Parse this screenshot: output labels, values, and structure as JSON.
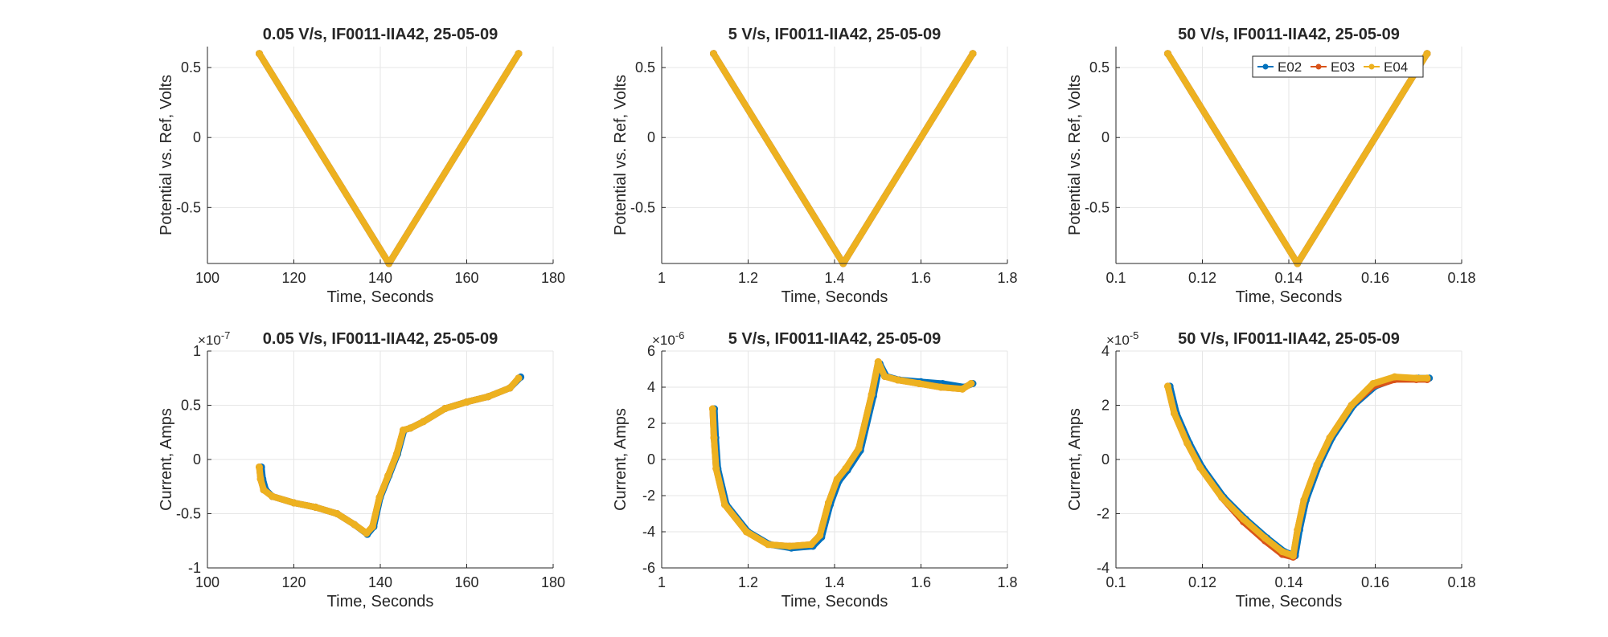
{
  "colors": {
    "E02": "#0072BD",
    "E03": "#D95319",
    "E04": "#EDB120",
    "grid": "#e6e6e6",
    "axis": "#262626"
  },
  "legend": {
    "placement": "top-right of top-right subplot",
    "entries": [
      "E02",
      "E03",
      "E04"
    ]
  },
  "chart_data": [
    {
      "type": "line",
      "title": "0.05 V/s, IF0011-IIA42, 25-05-09",
      "xlabel": "Time, Seconds",
      "ylabel": "Potential vs. Ref, Volts",
      "xlim": [
        100,
        180
      ],
      "ylim": [
        -0.9,
        0.65
      ],
      "xticks": [
        100,
        120,
        140,
        160,
        180
      ],
      "xtick_labels": [
        "100",
        "120",
        "140",
        "160",
        "180"
      ],
      "yticks": [
        -0.5,
        0,
        0.5
      ],
      "ytick_labels": [
        "-0.5",
        "0",
        "0.5"
      ],
      "exponent": "",
      "grid": true,
      "series": [
        {
          "name": "E02",
          "x": [
            112,
            142,
            172
          ],
          "y": [
            0.6,
            -0.9,
            0.6
          ]
        },
        {
          "name": "E03",
          "x": [
            112,
            142,
            172
          ],
          "y": [
            0.6,
            -0.9,
            0.6
          ]
        },
        {
          "name": "E04",
          "x": [
            112,
            142,
            172
          ],
          "y": [
            0.6,
            -0.9,
            0.6
          ]
        }
      ]
    },
    {
      "type": "line",
      "title": "5 V/s, IF0011-IIA42, 25-05-09",
      "xlabel": "Time, Seconds",
      "ylabel": "Potential vs. Ref, Volts",
      "xlim": [
        1,
        1.8
      ],
      "ylim": [
        -0.9,
        0.65
      ],
      "xticks": [
        1,
        1.2,
        1.4,
        1.6,
        1.8
      ],
      "xtick_labels": [
        "1",
        "1.2",
        "1.4",
        "1.6",
        "1.8"
      ],
      "yticks": [
        -0.5,
        0,
        0.5
      ],
      "ytick_labels": [
        "-0.5",
        "0",
        "0.5"
      ],
      "exponent": "",
      "grid": true,
      "series": [
        {
          "name": "E02",
          "x": [
            1.12,
            1.42,
            1.72
          ],
          "y": [
            0.6,
            -0.9,
            0.6
          ]
        },
        {
          "name": "E03",
          "x": [
            1.12,
            1.42,
            1.72
          ],
          "y": [
            0.6,
            -0.9,
            0.6
          ]
        },
        {
          "name": "E04",
          "x": [
            1.12,
            1.42,
            1.72
          ],
          "y": [
            0.6,
            -0.9,
            0.6
          ]
        }
      ]
    },
    {
      "type": "line",
      "title": "50 V/s, IF0011-IIA42, 25-05-09",
      "xlabel": "Time, Seconds",
      "ylabel": "Potential vs. Ref, Volts",
      "xlim": [
        0.1,
        0.18
      ],
      "ylim": [
        -0.9,
        0.65
      ],
      "xticks": [
        0.1,
        0.12,
        0.14,
        0.16,
        0.18
      ],
      "xtick_labels": [
        "0.1",
        "0.12",
        "0.14",
        "0.16",
        "0.18"
      ],
      "yticks": [
        -0.5,
        0,
        0.5
      ],
      "ytick_labels": [
        "-0.5",
        "0",
        "0.5"
      ],
      "exponent": "",
      "grid": true,
      "has_legend": true,
      "series": [
        {
          "name": "E02",
          "x": [
            0.112,
            0.142,
            0.172
          ],
          "y": [
            0.6,
            -0.9,
            0.6
          ]
        },
        {
          "name": "E03",
          "x": [
            0.112,
            0.142,
            0.172
          ],
          "y": [
            0.6,
            -0.9,
            0.6
          ]
        },
        {
          "name": "E04",
          "x": [
            0.112,
            0.142,
            0.172
          ],
          "y": [
            0.6,
            -0.9,
            0.6
          ]
        }
      ]
    },
    {
      "type": "line",
      "title": "0.05 V/s, IF0011-IIA42, 25-05-09",
      "xlabel": "Time, Seconds",
      "ylabel": "Current, Amps",
      "xlim": [
        100,
        180
      ],
      "ylim": [
        -1,
        1
      ],
      "xticks": [
        100,
        120,
        140,
        160,
        180
      ],
      "xtick_labels": [
        "100",
        "120",
        "140",
        "160",
        "180"
      ],
      "yticks": [
        -1,
        -0.5,
        0,
        0.5,
        1
      ],
      "ytick_labels": [
        "-1",
        "-0.5",
        "0",
        "0.5",
        "1"
      ],
      "exponent": "×10",
      "exponent_power": "-7",
      "grid": true,
      "series": [
        {
          "name": "E02",
          "x": [
            112.5,
            112.8,
            113.5,
            115,
            120,
            125,
            130,
            134,
            137,
            138.5,
            140,
            142,
            144,
            145.5,
            147,
            150,
            155,
            160,
            165,
            170,
            172.5
          ],
          "y": [
            -0.07,
            -0.18,
            -0.28,
            -0.34,
            -0.4,
            -0.44,
            -0.5,
            -0.6,
            -0.69,
            -0.62,
            -0.35,
            -0.15,
            0.05,
            0.27,
            0.29,
            0.35,
            0.47,
            0.53,
            0.58,
            0.66,
            0.76
          ]
        },
        {
          "name": "E03",
          "x": [
            112,
            112.3,
            113,
            115,
            120,
            125,
            130,
            134,
            136.8,
            138.2,
            139.8,
            141.8,
            143.8,
            145.3,
            147,
            150,
            155,
            160,
            165,
            170,
            172
          ],
          "y": [
            -0.07,
            -0.18,
            -0.28,
            -0.34,
            -0.4,
            -0.44,
            -0.5,
            -0.6,
            -0.68,
            -0.62,
            -0.35,
            -0.15,
            0.05,
            0.27,
            0.29,
            0.35,
            0.47,
            0.53,
            0.58,
            0.66,
            0.75
          ]
        },
        {
          "name": "E04",
          "x": [
            112,
            112.3,
            113,
            115,
            120,
            125,
            130,
            134,
            136.8,
            138.2,
            139.8,
            141.8,
            143.8,
            145.3,
            147,
            150,
            155,
            160,
            165,
            170,
            172
          ],
          "y": [
            -0.07,
            -0.18,
            -0.28,
            -0.34,
            -0.4,
            -0.44,
            -0.5,
            -0.6,
            -0.68,
            -0.62,
            -0.35,
            -0.15,
            0.05,
            0.27,
            0.29,
            0.35,
            0.47,
            0.53,
            0.58,
            0.66,
            0.75
          ]
        }
      ]
    },
    {
      "type": "line",
      "title": "5 V/s, IF0011-IIA42, 25-05-09",
      "xlabel": "Time, Seconds",
      "ylabel": "Current, Amps",
      "xlim": [
        1,
        1.8
      ],
      "ylim": [
        -6,
        6
      ],
      "xticks": [
        1,
        1.2,
        1.4,
        1.6,
        1.8
      ],
      "xtick_labels": [
        "1",
        "1.2",
        "1.4",
        "1.6",
        "1.8"
      ],
      "yticks": [
        -6,
        -4,
        -2,
        0,
        2,
        4,
        6
      ],
      "ytick_labels": [
        "-6",
        "-4",
        "-2",
        "0",
        "2",
        "4",
        "6"
      ],
      "exponent": "×10",
      "exponent_power": "-6",
      "grid": true,
      "series": [
        {
          "name": "E02",
          "x": [
            1.122,
            1.125,
            1.13,
            1.15,
            1.2,
            1.25,
            1.3,
            1.35,
            1.37,
            1.39,
            1.41,
            1.43,
            1.46,
            1.49,
            1.505,
            1.52,
            1.55,
            1.6,
            1.65,
            1.7,
            1.72
          ],
          "y": [
            2.8,
            1.2,
            -0.5,
            -2.5,
            -4.0,
            -4.7,
            -4.9,
            -4.8,
            -4.3,
            -2.5,
            -1.2,
            -0.6,
            0.5,
            3.5,
            5.3,
            4.6,
            4.4,
            4.3,
            4.2,
            4.0,
            4.2
          ]
        },
        {
          "name": "E03",
          "x": [
            1.118,
            1.121,
            1.126,
            1.146,
            1.196,
            1.246,
            1.296,
            1.346,
            1.366,
            1.386,
            1.406,
            1.426,
            1.456,
            1.486,
            1.501,
            1.516,
            1.546,
            1.596,
            1.646,
            1.696,
            1.716
          ],
          "y": [
            2.8,
            1.2,
            -0.5,
            -2.5,
            -4.0,
            -4.7,
            -4.8,
            -4.7,
            -4.2,
            -2.4,
            -1.1,
            -0.5,
            0.6,
            3.6,
            5.4,
            4.6,
            4.4,
            4.2,
            4.0,
            3.9,
            4.2
          ]
        },
        {
          "name": "E04",
          "x": [
            1.118,
            1.121,
            1.126,
            1.146,
            1.196,
            1.246,
            1.296,
            1.346,
            1.366,
            1.386,
            1.406,
            1.426,
            1.456,
            1.486,
            1.501,
            1.516,
            1.546,
            1.596,
            1.646,
            1.696,
            1.716
          ],
          "y": [
            2.8,
            1.2,
            -0.5,
            -2.5,
            -4.0,
            -4.7,
            -4.8,
            -4.7,
            -4.2,
            -2.4,
            -1.1,
            -0.5,
            0.6,
            3.6,
            5.4,
            4.6,
            4.4,
            4.2,
            4.0,
            3.9,
            4.2
          ]
        }
      ]
    },
    {
      "type": "line",
      "title": "50 V/s, IF0011-IIA42, 25-05-09",
      "xlabel": "Time, Seconds",
      "ylabel": "Current, Amps",
      "xlim": [
        0.1,
        0.18
      ],
      "ylim": [
        -4,
        4
      ],
      "xticks": [
        0.1,
        0.12,
        0.14,
        0.16,
        0.18
      ],
      "xtick_labels": [
        "0.1",
        "0.12",
        "0.14",
        "0.16",
        "0.18"
      ],
      "yticks": [
        -4,
        -2,
        0,
        2,
        4
      ],
      "ytick_labels": [
        "-4",
        "-2",
        "0",
        "2",
        "4"
      ],
      "exponent": "×10",
      "exponent_power": "-5",
      "grid": true,
      "series": [
        {
          "name": "E02",
          "x": [
            0.1125,
            0.114,
            0.117,
            0.12,
            0.125,
            0.13,
            0.135,
            0.139,
            0.1415,
            0.1425,
            0.144,
            0.147,
            0.15,
            0.155,
            0.16,
            0.165,
            0.17,
            0.1725
          ],
          "y": [
            2.7,
            1.7,
            0.6,
            -0.3,
            -1.4,
            -2.2,
            -2.9,
            -3.4,
            -3.55,
            -2.6,
            -1.5,
            -0.2,
            0.8,
            2.0,
            2.7,
            3.0,
            3.0,
            3.0
          ]
        },
        {
          "name": "E03",
          "x": [
            0.112,
            0.1135,
            0.1165,
            0.1195,
            0.1245,
            0.1295,
            0.1345,
            0.1385,
            0.141,
            0.142,
            0.1435,
            0.1465,
            0.1495,
            0.1545,
            0.1595,
            0.1645,
            0.1695,
            0.172
          ],
          "y": [
            2.7,
            1.7,
            0.6,
            -0.3,
            -1.4,
            -2.3,
            -3.0,
            -3.5,
            -3.6,
            -2.6,
            -1.5,
            -0.2,
            0.8,
            2.0,
            2.7,
            2.95,
            2.95,
            2.95
          ]
        },
        {
          "name": "E04",
          "x": [
            0.112,
            0.1135,
            0.1165,
            0.1195,
            0.1245,
            0.1295,
            0.1345,
            0.1385,
            0.141,
            0.142,
            0.1435,
            0.1465,
            0.1495,
            0.1545,
            0.1595,
            0.1645,
            0.1695,
            0.172
          ],
          "y": [
            2.7,
            1.7,
            0.6,
            -0.3,
            -1.4,
            -2.2,
            -2.9,
            -3.4,
            -3.55,
            -2.6,
            -1.5,
            -0.2,
            0.8,
            2.0,
            2.8,
            3.05,
            3.0,
            3.0
          ]
        }
      ]
    }
  ]
}
